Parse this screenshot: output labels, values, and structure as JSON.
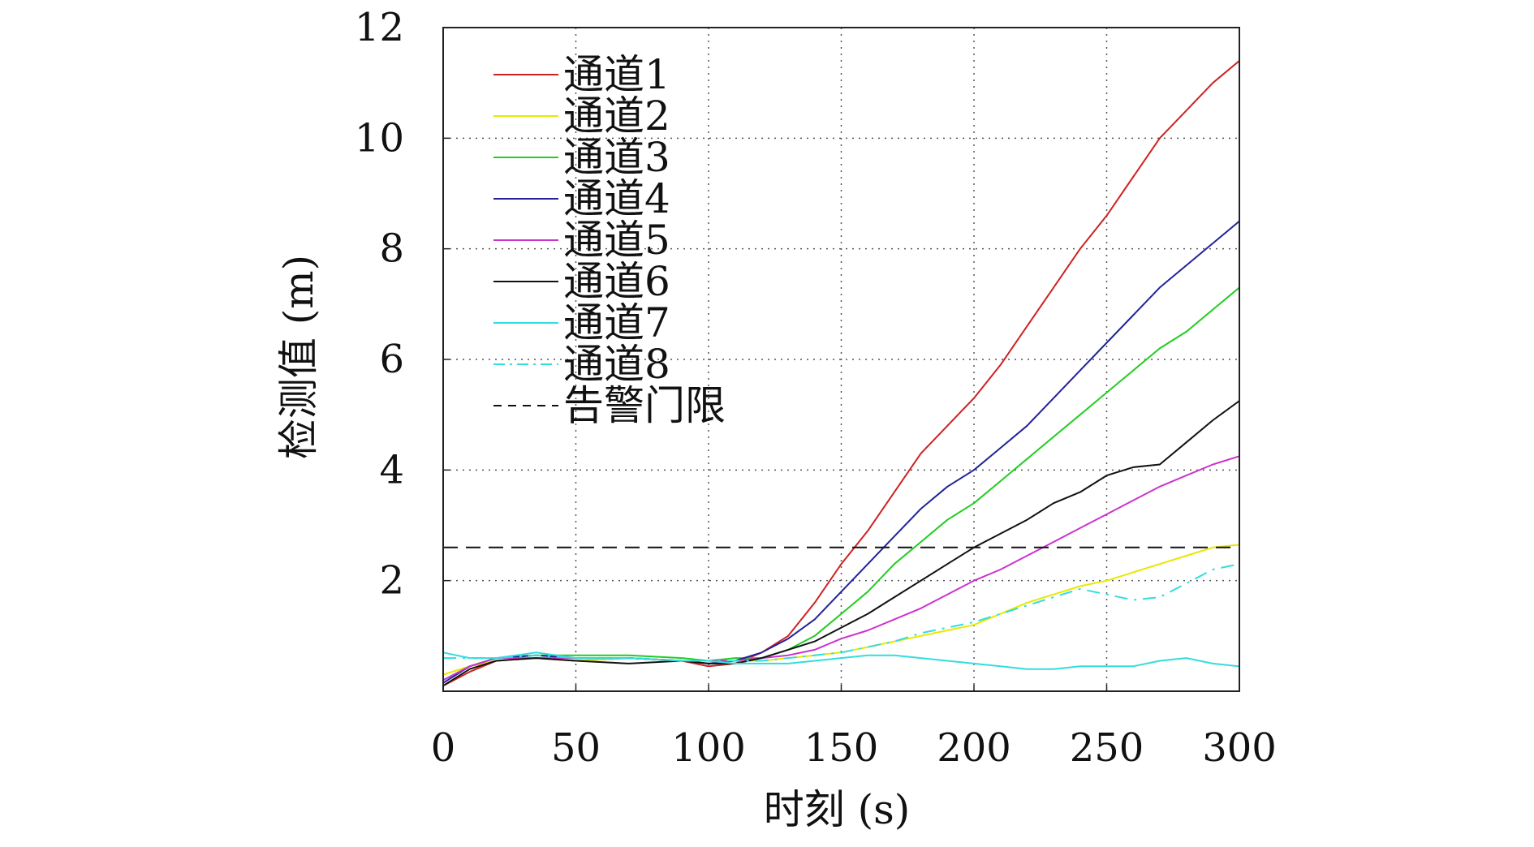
{
  "chart_data": {
    "type": "line",
    "xlabel": "时刻 (s)",
    "ylabel": "检测值 (m)",
    "xlim": [
      0,
      300
    ],
    "ylim": [
      0,
      12
    ],
    "x_ticks": [
      0,
      50,
      100,
      150,
      200,
      250,
      300
    ],
    "y_ticks": [
      2,
      4,
      6,
      8,
      10,
      12
    ],
    "x_tick_labels": [
      "0",
      "50",
      "100",
      "150",
      "200",
      "250",
      "300"
    ],
    "y_tick_labels": [
      "2",
      "4",
      "6",
      "8",
      "10",
      "12"
    ],
    "grid": true,
    "legend_placement": "top-left",
    "series": [
      {
        "name": "通道1",
        "color": "#cc2222",
        "style": "solid",
        "x": [
          0,
          10,
          20,
          35,
          50,
          70,
          90,
          100,
          110,
          120,
          130,
          140,
          150,
          160,
          170,
          180,
          190,
          200,
          210,
          220,
          230,
          240,
          250,
          260,
          270,
          280,
          290,
          300
        ],
        "y": [
          0.1,
          0.35,
          0.55,
          0.6,
          0.55,
          0.6,
          0.55,
          0.45,
          0.5,
          0.7,
          1.0,
          1.6,
          2.3,
          2.9,
          3.6,
          4.3,
          4.8,
          5.3,
          5.9,
          6.6,
          7.3,
          8.0,
          8.6,
          9.3,
          10.0,
          10.5,
          11.0,
          11.4
        ]
      },
      {
        "name": "通道2",
        "color": "#e8e800",
        "style": "solid",
        "x": [
          0,
          10,
          20,
          35,
          50,
          70,
          90,
          100,
          110,
          120,
          130,
          140,
          150,
          160,
          170,
          180,
          190,
          200,
          210,
          220,
          230,
          240,
          250,
          260,
          270,
          280,
          290,
          300
        ],
        "y": [
          0.3,
          0.45,
          0.55,
          0.6,
          0.55,
          0.6,
          0.55,
          0.55,
          0.55,
          0.55,
          0.6,
          0.65,
          0.7,
          0.8,
          0.9,
          1.0,
          1.1,
          1.2,
          1.4,
          1.6,
          1.75,
          1.9,
          2.0,
          2.15,
          2.3,
          2.45,
          2.6,
          2.65
        ]
      },
      {
        "name": "通道3",
        "color": "#22cc22",
        "style": "solid",
        "x": [
          0,
          10,
          20,
          35,
          50,
          70,
          90,
          100,
          110,
          120,
          130,
          140,
          150,
          160,
          170,
          180,
          190,
          200,
          210,
          220,
          230,
          240,
          250,
          260,
          270,
          280,
          290,
          300
        ],
        "y": [
          0.2,
          0.45,
          0.6,
          0.65,
          0.65,
          0.65,
          0.6,
          0.55,
          0.6,
          0.6,
          0.75,
          1.0,
          1.4,
          1.8,
          2.3,
          2.7,
          3.1,
          3.4,
          3.8,
          4.2,
          4.6,
          5.0,
          5.4,
          5.8,
          6.2,
          6.5,
          6.9,
          7.3
        ]
      },
      {
        "name": "通道4",
        "color": "#222299",
        "style": "solid",
        "x": [
          0,
          10,
          20,
          35,
          50,
          70,
          90,
          100,
          110,
          120,
          130,
          140,
          150,
          160,
          170,
          180,
          190,
          200,
          210,
          220,
          230,
          240,
          250,
          260,
          270,
          280,
          290,
          300
        ],
        "y": [
          0.15,
          0.45,
          0.6,
          0.65,
          0.6,
          0.6,
          0.55,
          0.5,
          0.55,
          0.7,
          0.95,
          1.3,
          1.8,
          2.3,
          2.8,
          3.3,
          3.7,
          4.0,
          4.4,
          4.8,
          5.3,
          5.8,
          6.3,
          6.8,
          7.3,
          7.7,
          8.1,
          8.5
        ]
      },
      {
        "name": "通道5",
        "color": "#cc33cc",
        "style": "solid",
        "x": [
          0,
          10,
          20,
          35,
          50,
          70,
          90,
          100,
          110,
          120,
          130,
          140,
          150,
          160,
          170,
          180,
          190,
          200,
          210,
          220,
          230,
          240,
          250,
          260,
          270,
          280,
          290,
          300
        ],
        "y": [
          0.2,
          0.45,
          0.6,
          0.6,
          0.6,
          0.6,
          0.55,
          0.55,
          0.55,
          0.6,
          0.65,
          0.75,
          0.95,
          1.1,
          1.3,
          1.5,
          1.75,
          2.0,
          2.2,
          2.45,
          2.7,
          2.95,
          3.2,
          3.45,
          3.7,
          3.9,
          4.1,
          4.25
        ]
      },
      {
        "name": "通道6",
        "color": "#111111",
        "style": "solid",
        "x": [
          0,
          10,
          20,
          35,
          50,
          70,
          90,
          100,
          110,
          120,
          130,
          140,
          150,
          160,
          170,
          180,
          190,
          200,
          210,
          220,
          230,
          240,
          250,
          260,
          270,
          280,
          290,
          300
        ],
        "y": [
          0.1,
          0.4,
          0.55,
          0.6,
          0.55,
          0.5,
          0.55,
          0.5,
          0.5,
          0.6,
          0.75,
          0.9,
          1.15,
          1.4,
          1.7,
          2.0,
          2.3,
          2.6,
          2.85,
          3.1,
          3.4,
          3.6,
          3.9,
          4.05,
          4.1,
          4.5,
          4.9,
          5.25
        ]
      },
      {
        "name": "通道7",
        "color": "#33dddd",
        "style": "solid",
        "x": [
          0,
          10,
          20,
          35,
          50,
          70,
          90,
          100,
          110,
          120,
          130,
          140,
          150,
          160,
          170,
          180,
          190,
          200,
          210,
          220,
          230,
          240,
          250,
          260,
          270,
          280,
          290,
          300
        ],
        "y": [
          0.7,
          0.6,
          0.6,
          0.7,
          0.6,
          0.6,
          0.55,
          0.55,
          0.5,
          0.5,
          0.5,
          0.55,
          0.6,
          0.65,
          0.65,
          0.6,
          0.55,
          0.5,
          0.45,
          0.4,
          0.4,
          0.45,
          0.45,
          0.45,
          0.55,
          0.6,
          0.5,
          0.45
        ]
      },
      {
        "name": "通道8",
        "color": "#33dddd",
        "style": "dashdot",
        "x": [
          0,
          10,
          20,
          35,
          50,
          70,
          90,
          100,
          110,
          120,
          130,
          140,
          150,
          160,
          170,
          180,
          190,
          200,
          210,
          220,
          230,
          240,
          250,
          260,
          270,
          280,
          290,
          300
        ],
        "y": [
          0.6,
          0.6,
          0.6,
          0.65,
          0.6,
          0.6,
          0.55,
          0.55,
          0.55,
          0.55,
          0.6,
          0.65,
          0.7,
          0.8,
          0.9,
          1.05,
          1.15,
          1.25,
          1.4,
          1.55,
          1.7,
          1.85,
          1.75,
          1.65,
          1.7,
          1.95,
          2.2,
          2.3
        ]
      },
      {
        "name": "告警门限",
        "color": "#111111",
        "style": "dashed",
        "x": [
          0,
          300
        ],
        "y": [
          2.6,
          2.6
        ]
      }
    ]
  }
}
